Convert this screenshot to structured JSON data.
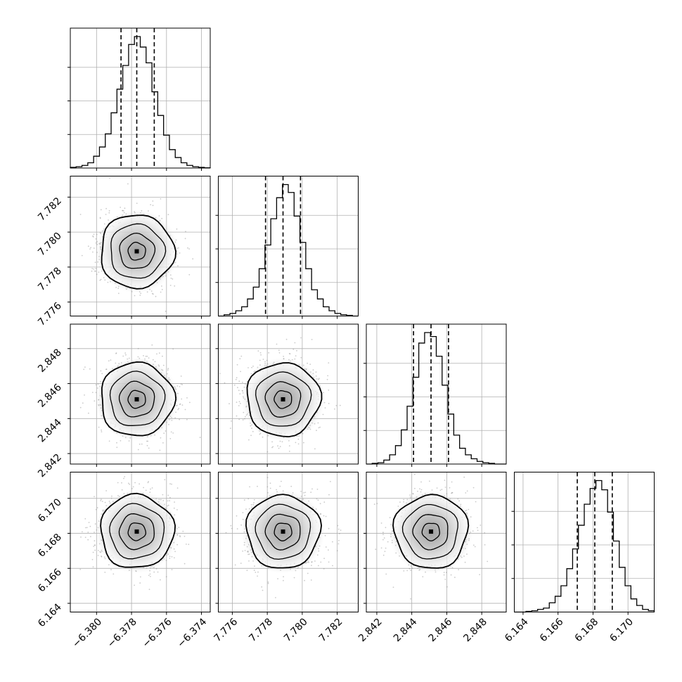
{
  "chart_data": {
    "type": "corner",
    "parameters": [
      {
        "median": -6.3777,
        "quantiles": [
          -6.3786,
          -6.3777,
          -6.3767
        ],
        "range": [
          -6.3815,
          -6.3735
        ],
        "ticks": [
          -6.38,
          -6.378,
          -6.376,
          -6.374
        ],
        "tick_labels": [
          "−6.380",
          "−6.378",
          "−6.376",
          "−6.374"
        ]
      },
      {
        "median": 7.7789,
        "quantiles": [
          7.7779,
          7.7789,
          7.7799
        ],
        "range": [
          7.7752,
          7.7832
        ],
        "ticks": [
          7.776,
          7.778,
          7.78,
          7.782
        ],
        "tick_labels": [
          "7.776",
          "7.778",
          "7.780",
          "7.782"
        ]
      },
      {
        "median": 2.8451,
        "quantiles": [
          2.8441,
          2.8451,
          2.8461
        ],
        "range": [
          2.8414,
          2.8494
        ],
        "ticks": [
          2.842,
          2.844,
          2.846,
          2.848
        ],
        "tick_labels": [
          "2.842",
          "2.844",
          "2.846",
          "2.848"
        ]
      },
      {
        "median": 6.1681,
        "quantiles": [
          6.1671,
          6.1681,
          6.1691
        ],
        "range": [
          6.1635,
          6.1715
        ],
        "ticks": [
          6.164,
          6.166,
          6.168,
          6.17
        ],
        "tick_labels": [
          "6.164",
          "6.166",
          "6.168",
          "6.170"
        ]
      }
    ],
    "histograms": [
      [
        0.005,
        0.01,
        0.02,
        0.04,
        0.09,
        0.16,
        0.26,
        0.42,
        0.6,
        0.78,
        0.94,
        1.0,
        0.92,
        0.8,
        0.58,
        0.4,
        0.25,
        0.14,
        0.08,
        0.04,
        0.02,
        0.01,
        0.005,
        0.002
      ],
      [
        0.0,
        0.01,
        0.02,
        0.04,
        0.07,
        0.13,
        0.22,
        0.36,
        0.54,
        0.74,
        0.9,
        1.0,
        0.94,
        0.76,
        0.56,
        0.36,
        0.2,
        0.13,
        0.07,
        0.04,
        0.02,
        0.01,
        0.005,
        0.0
      ],
      [
        0.0,
        0.005,
        0.01,
        0.03,
        0.07,
        0.14,
        0.26,
        0.44,
        0.66,
        0.92,
        1.0,
        0.97,
        0.82,
        0.6,
        0.38,
        0.22,
        0.12,
        0.07,
        0.04,
        0.02,
        0.01,
        0.005,
        0.0,
        0.0
      ],
      [
        0.0,
        0.0,
        0.005,
        0.01,
        0.02,
        0.03,
        0.07,
        0.12,
        0.2,
        0.33,
        0.48,
        0.66,
        0.82,
        0.94,
        1.0,
        0.93,
        0.76,
        0.54,
        0.34,
        0.2,
        0.1,
        0.05,
        0.02,
        0.01
      ]
    ],
    "quantile_style": "dashed",
    "grid": true,
    "scatter": "light-gray",
    "contours": "black",
    "density": "grayscale",
    "accent_colors": {
      "lines": "#000000",
      "grid": "#b0b0b0",
      "scatter": "#8c8c8c"
    }
  }
}
